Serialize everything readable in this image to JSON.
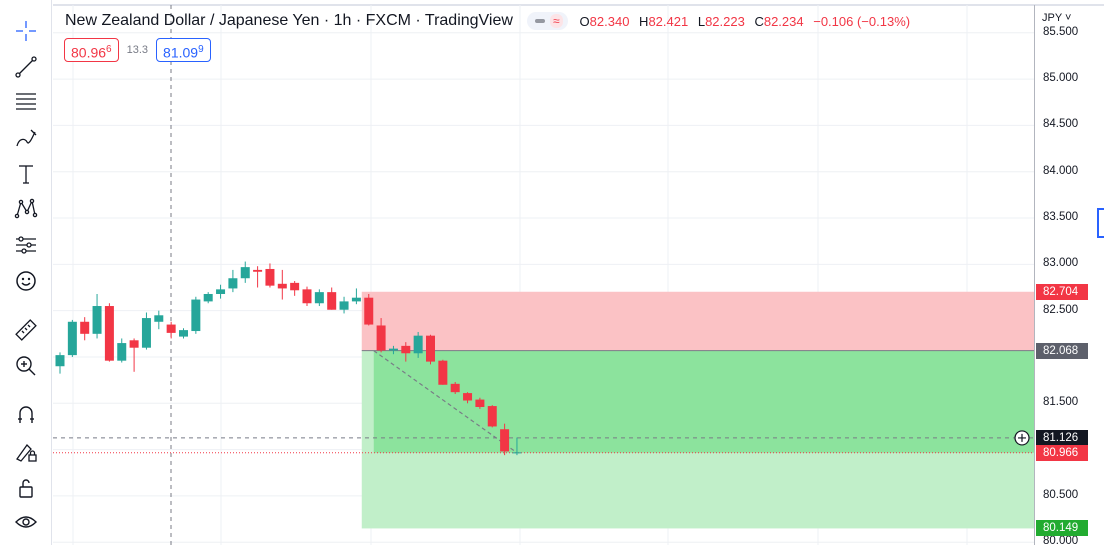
{
  "legend": {
    "title": "New Zealand Dollar / Japanese Yen · 1h · FXCM · TradingView",
    "pill_symbol": "≈",
    "open_key": "O",
    "open": "82.340",
    "high_key": "H",
    "high": "82.421",
    "low_key": "L",
    "low": "82.223",
    "close_key": "C",
    "close": "82.234",
    "change": "−0.106 (−0.13%)"
  },
  "quick": {
    "sell": "80.96",
    "sell_sup": "6",
    "spread": "13.3",
    "buy": "81.09",
    "buy_sup": "9"
  },
  "axis": {
    "currency": "JPY ˅",
    "ticks": [
      "85.500",
      "85.000",
      "84.500",
      "84.000",
      "83.500",
      "83.000",
      "82.500",
      "82.000",
      "81.500",
      "81.000",
      "80.500",
      "80.000"
    ]
  },
  "tags": {
    "stop": "82.704",
    "entry": "82.068",
    "crosshair": "81.126",
    "current": "80.966",
    "target": "80.149"
  },
  "colors": {
    "up": "#26a69a",
    "down": "#f23645",
    "stop_zone": "#fbc2c5",
    "target_zone_dark": "#8ce39d",
    "target_zone_light": "#c1efc9",
    "entry_tag": "#5d606b",
    "target_tag": "#22ab30",
    "crosshair_tag": "#131722"
  },
  "toolbar": [
    "crosshair-icon",
    "trend-line-icon",
    "fib-retracement-icon",
    "brush-icon",
    "text-icon",
    "pattern-icon",
    "forecast-icon",
    "emoji-icon",
    "ruler-icon",
    "zoom-in-icon",
    "magnet-icon",
    "lock-drawing-icon",
    "lock-icon",
    "eye-icon"
  ],
  "chart_data": {
    "type": "candlestick",
    "title": "New Zealand Dollar / Japanese Yen · 1h · FXCM",
    "ylim": [
      79.97,
      85.8
    ],
    "candles": [
      {
        "o": 81.9,
        "h": 82.05,
        "l": 81.82,
        "c": 82.02
      },
      {
        "o": 82.02,
        "h": 82.4,
        "l": 82.0,
        "c": 82.38
      },
      {
        "o": 82.38,
        "h": 82.43,
        "l": 82.18,
        "c": 82.25
      },
      {
        "o": 82.25,
        "h": 82.68,
        "l": 82.2,
        "c": 82.55
      },
      {
        "o": 82.55,
        "h": 82.58,
        "l": 81.95,
        "c": 81.96
      },
      {
        "o": 81.96,
        "h": 82.2,
        "l": 81.94,
        "c": 82.15
      },
      {
        "o": 82.18,
        "h": 82.2,
        "l": 81.84,
        "c": 82.1
      },
      {
        "o": 82.1,
        "h": 82.48,
        "l": 82.08,
        "c": 82.42
      },
      {
        "o": 82.38,
        "h": 82.5,
        "l": 82.3,
        "c": 82.45
      },
      {
        "o": 82.35,
        "h": 82.38,
        "l": 82.2,
        "c": 82.26
      },
      {
        "o": 82.22,
        "h": 82.31,
        "l": 82.2,
        "c": 82.29
      },
      {
        "o": 82.28,
        "h": 82.65,
        "l": 82.25,
        "c": 82.62
      },
      {
        "o": 82.6,
        "h": 82.7,
        "l": 82.58,
        "c": 82.68
      },
      {
        "o": 82.68,
        "h": 82.78,
        "l": 82.63,
        "c": 82.73
      },
      {
        "o": 82.74,
        "h": 82.94,
        "l": 82.7,
        "c": 82.85
      },
      {
        "o": 82.85,
        "h": 83.03,
        "l": 82.8,
        "c": 82.97
      },
      {
        "o": 82.94,
        "h": 82.98,
        "l": 82.75,
        "c": 82.92
      },
      {
        "o": 82.95,
        "h": 83.01,
        "l": 82.75,
        "c": 82.77
      },
      {
        "o": 82.79,
        "h": 82.94,
        "l": 82.62,
        "c": 82.74
      },
      {
        "o": 82.8,
        "h": 82.82,
        "l": 82.66,
        "c": 82.72
      },
      {
        "o": 82.73,
        "h": 82.76,
        "l": 82.55,
        "c": 82.58
      },
      {
        "o": 82.58,
        "h": 82.73,
        "l": 82.55,
        "c": 82.7
      },
      {
        "o": 82.7,
        "h": 82.75,
        "l": 82.51,
        "c": 82.51
      },
      {
        "o": 82.51,
        "h": 82.65,
        "l": 82.47,
        "c": 82.6
      },
      {
        "o": 82.6,
        "h": 82.74,
        "l": 82.57,
        "c": 82.64
      },
      {
        "o": 82.64,
        "h": 82.68,
        "l": 82.34,
        "c": 82.35
      },
      {
        "o": 82.34,
        "h": 82.42,
        "l": 82.05,
        "c": 82.07
      },
      {
        "o": 82.07,
        "h": 82.12,
        "l": 82.03,
        "c": 82.09
      },
      {
        "o": 82.12,
        "h": 82.16,
        "l": 81.95,
        "c": 82.04
      },
      {
        "o": 82.04,
        "h": 82.27,
        "l": 81.99,
        "c": 82.23
      },
      {
        "o": 82.23,
        "h": 82.24,
        "l": 81.92,
        "c": 81.95
      },
      {
        "o": 81.96,
        "h": 81.97,
        "l": 81.7,
        "c": 81.7
      },
      {
        "o": 81.71,
        "h": 81.73,
        "l": 81.6,
        "c": 81.62
      },
      {
        "o": 81.61,
        "h": 81.62,
        "l": 81.5,
        "c": 81.53
      },
      {
        "o": 81.54,
        "h": 81.56,
        "l": 81.44,
        "c": 81.46
      },
      {
        "o": 81.47,
        "h": 81.48,
        "l": 81.24,
        "c": 81.25
      },
      {
        "o": 81.22,
        "h": 81.28,
        "l": 80.94,
        "c": 80.98
      },
      {
        "o": 80.97,
        "h": 81.13,
        "l": 80.94,
        "c": 80.97
      }
    ],
    "position": {
      "type": "short",
      "entry": 82.068,
      "stop": 82.704,
      "target": 80.149,
      "start_index": 25
    },
    "crosshair_price": 81.126,
    "current_price": 80.966
  }
}
